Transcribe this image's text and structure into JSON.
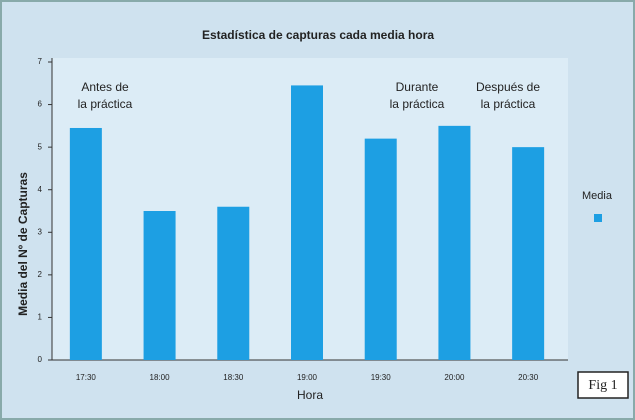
{
  "chart_data": {
    "type": "bar",
    "title": "Estadística de capturas cada media hora",
    "x_label": "Hora",
    "y_label": "Media del Nº de Capturas",
    "categories": [
      "17:30",
      "18:00",
      "18:30",
      "19:00",
      "19:30",
      "20:00",
      "20:30"
    ],
    "series": [
      {
        "name": "Media",
        "color": "#1d9fe3",
        "values": [
          5.45,
          3.5,
          3.6,
          6.45,
          5.2,
          5.5,
          5.0
        ]
      }
    ],
    "ylim": [
      0,
      7
    ],
    "yticks": [
      0,
      1,
      2,
      3,
      4,
      5,
      6,
      7
    ],
    "grid": false,
    "legend": "right",
    "annotations": [
      [
        "Antes de",
        "la práctica"
      ],
      [
        "Durante",
        "la práctica"
      ],
      [
        "Después de",
        "la práctica"
      ]
    ],
    "figure_label": "Fig 1"
  }
}
